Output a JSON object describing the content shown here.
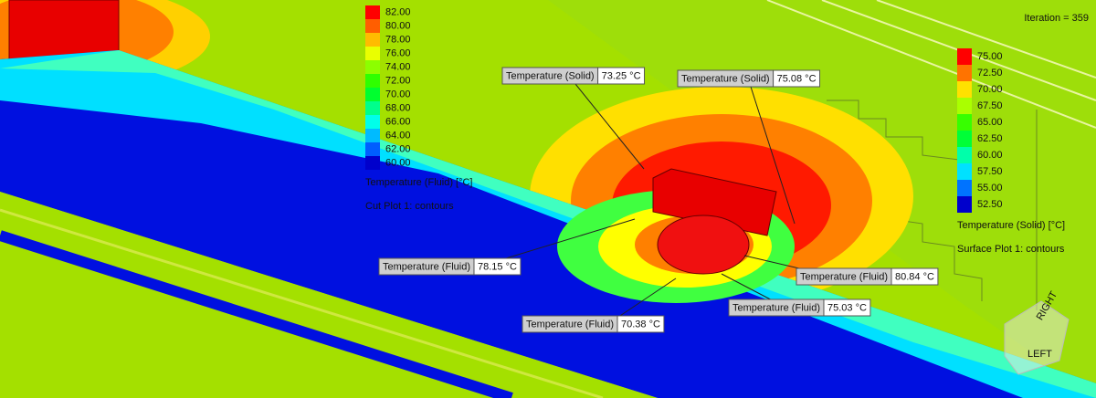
{
  "iteration": "Iteration = 359",
  "fluid_legend": {
    "labels": [
      "82.00",
      "80.00",
      "78.00",
      "76.00",
      "74.00",
      "72.00",
      "70.00",
      "68.00",
      "66.00",
      "64.00",
      "62.00",
      "60.00"
    ],
    "title": "Temperature (Fluid) [°C]",
    "plot_name": "Cut Plot 1: contours"
  },
  "solid_legend": {
    "labels": [
      "75.00",
      "72.50",
      "70.00",
      "67.50",
      "65.00",
      "62.50",
      "60.00",
      "57.50",
      "55.00",
      "52.50"
    ],
    "title": "Temperature (Solid) [°C]",
    "plot_name": "Surface Plot 1: contours"
  },
  "probes": [
    {
      "label": "Temperature (Solid)",
      "value": "73.25 °C"
    },
    {
      "label": "Temperature (Solid)",
      "value": "75.08 °C"
    },
    {
      "label": "Temperature (Fluid)",
      "value": "78.15 °C"
    },
    {
      "label": "Temperature (Fluid)",
      "value": "80.84 °C"
    },
    {
      "label": "Temperature (Fluid)",
      "value": "75.03 °C"
    },
    {
      "label": "Temperature (Fluid)",
      "value": "70.38 °C"
    }
  ],
  "view_cube": {
    "right": "RIGHT",
    "left": "LEFT"
  }
}
